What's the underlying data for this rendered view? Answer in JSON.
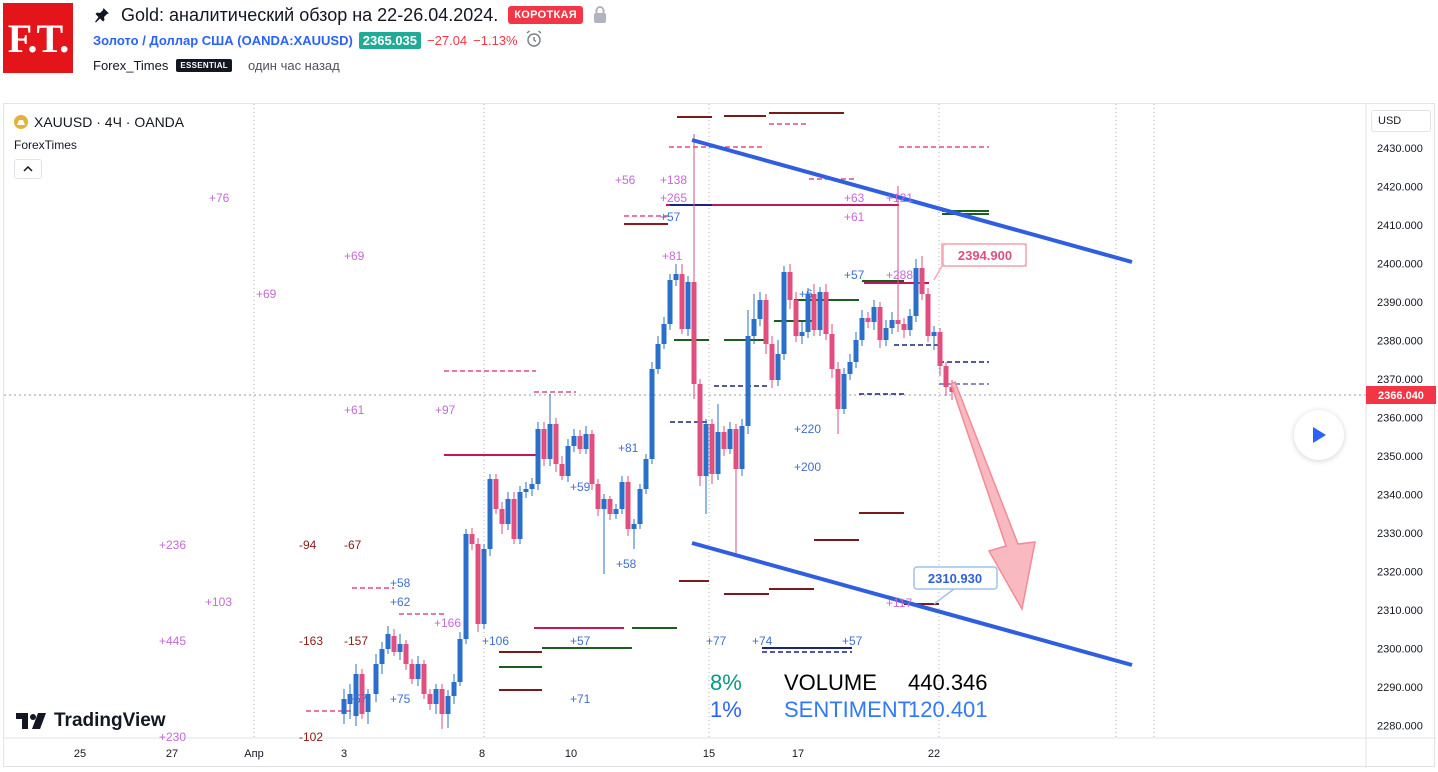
{
  "header": {
    "logo_text": "F.T.",
    "title": "Gold: аналитический обзор на 22-26.04.2024.",
    "direction_badge": "КОРОТКАЯ",
    "symbol_name": "Золото / Доллар США",
    "symbol_ticker": "(OANDA:XAUUSD)",
    "price": "2365.035",
    "change": "−27.04",
    "change_pct": "−1.13%",
    "author": "Forex_Times",
    "author_badge": "ESSENTIAL",
    "time_ago": "один час назад"
  },
  "chart": {
    "legend_symbol": "XAUUSD · 4Ч · OANDA",
    "indicator_name": "ForexTimes",
    "currency": "USD",
    "price_axis": [
      "2430.000",
      "2420.000",
      "2410.000",
      "2400.000",
      "2390.000",
      "2380.000",
      "2370.000",
      "2360.000",
      "2350.000",
      "2340.000",
      "2330.000",
      "2320.000",
      "2310.000",
      "2300.000",
      "2290.000",
      "2280.000"
    ],
    "time_axis": [
      "25",
      "27",
      "Апр",
      "3",
      "8",
      "10",
      "15",
      "17",
      "22"
    ],
    "current_price_label": "2366.040",
    "callout_high": "2394.900",
    "callout_low": "2310.930",
    "colors": {
      "up": "#2a6fc9",
      "down": "#e04f7d",
      "channel": "#2f5fe0",
      "arrow": "#f5a3ab"
    },
    "annotations_left": [
      "+76",
      "+69",
      "+69",
      "+61",
      "+97",
      "+236",
      "-94",
      "-67",
      "+103",
      "+445",
      "-163",
      "-157",
      "-102",
      "+230",
      "+58",
      "+62",
      "+166",
      "+75",
      "+57"
    ],
    "annotations_mid": [
      "+56",
      "+138",
      "+265",
      "+57",
      "+81",
      "+81",
      "+59",
      "+58",
      "+106",
      "+57",
      "+71"
    ],
    "annotations_right": [
      "+63",
      "+61",
      "+121",
      "+57",
      "+288",
      "+6",
      "+220",
      "+200",
      "+77",
      "+74",
      "+57",
      "+117"
    ]
  },
  "stats": {
    "volume_pct": "8%",
    "volume_label": "VOLUME",
    "volume_value": "440.346",
    "sentiment_pct": "1%",
    "sentiment_label": "SENTIMENT",
    "sentiment_value": "120.401"
  },
  "branding": {
    "tradingview": "TradingView"
  }
}
